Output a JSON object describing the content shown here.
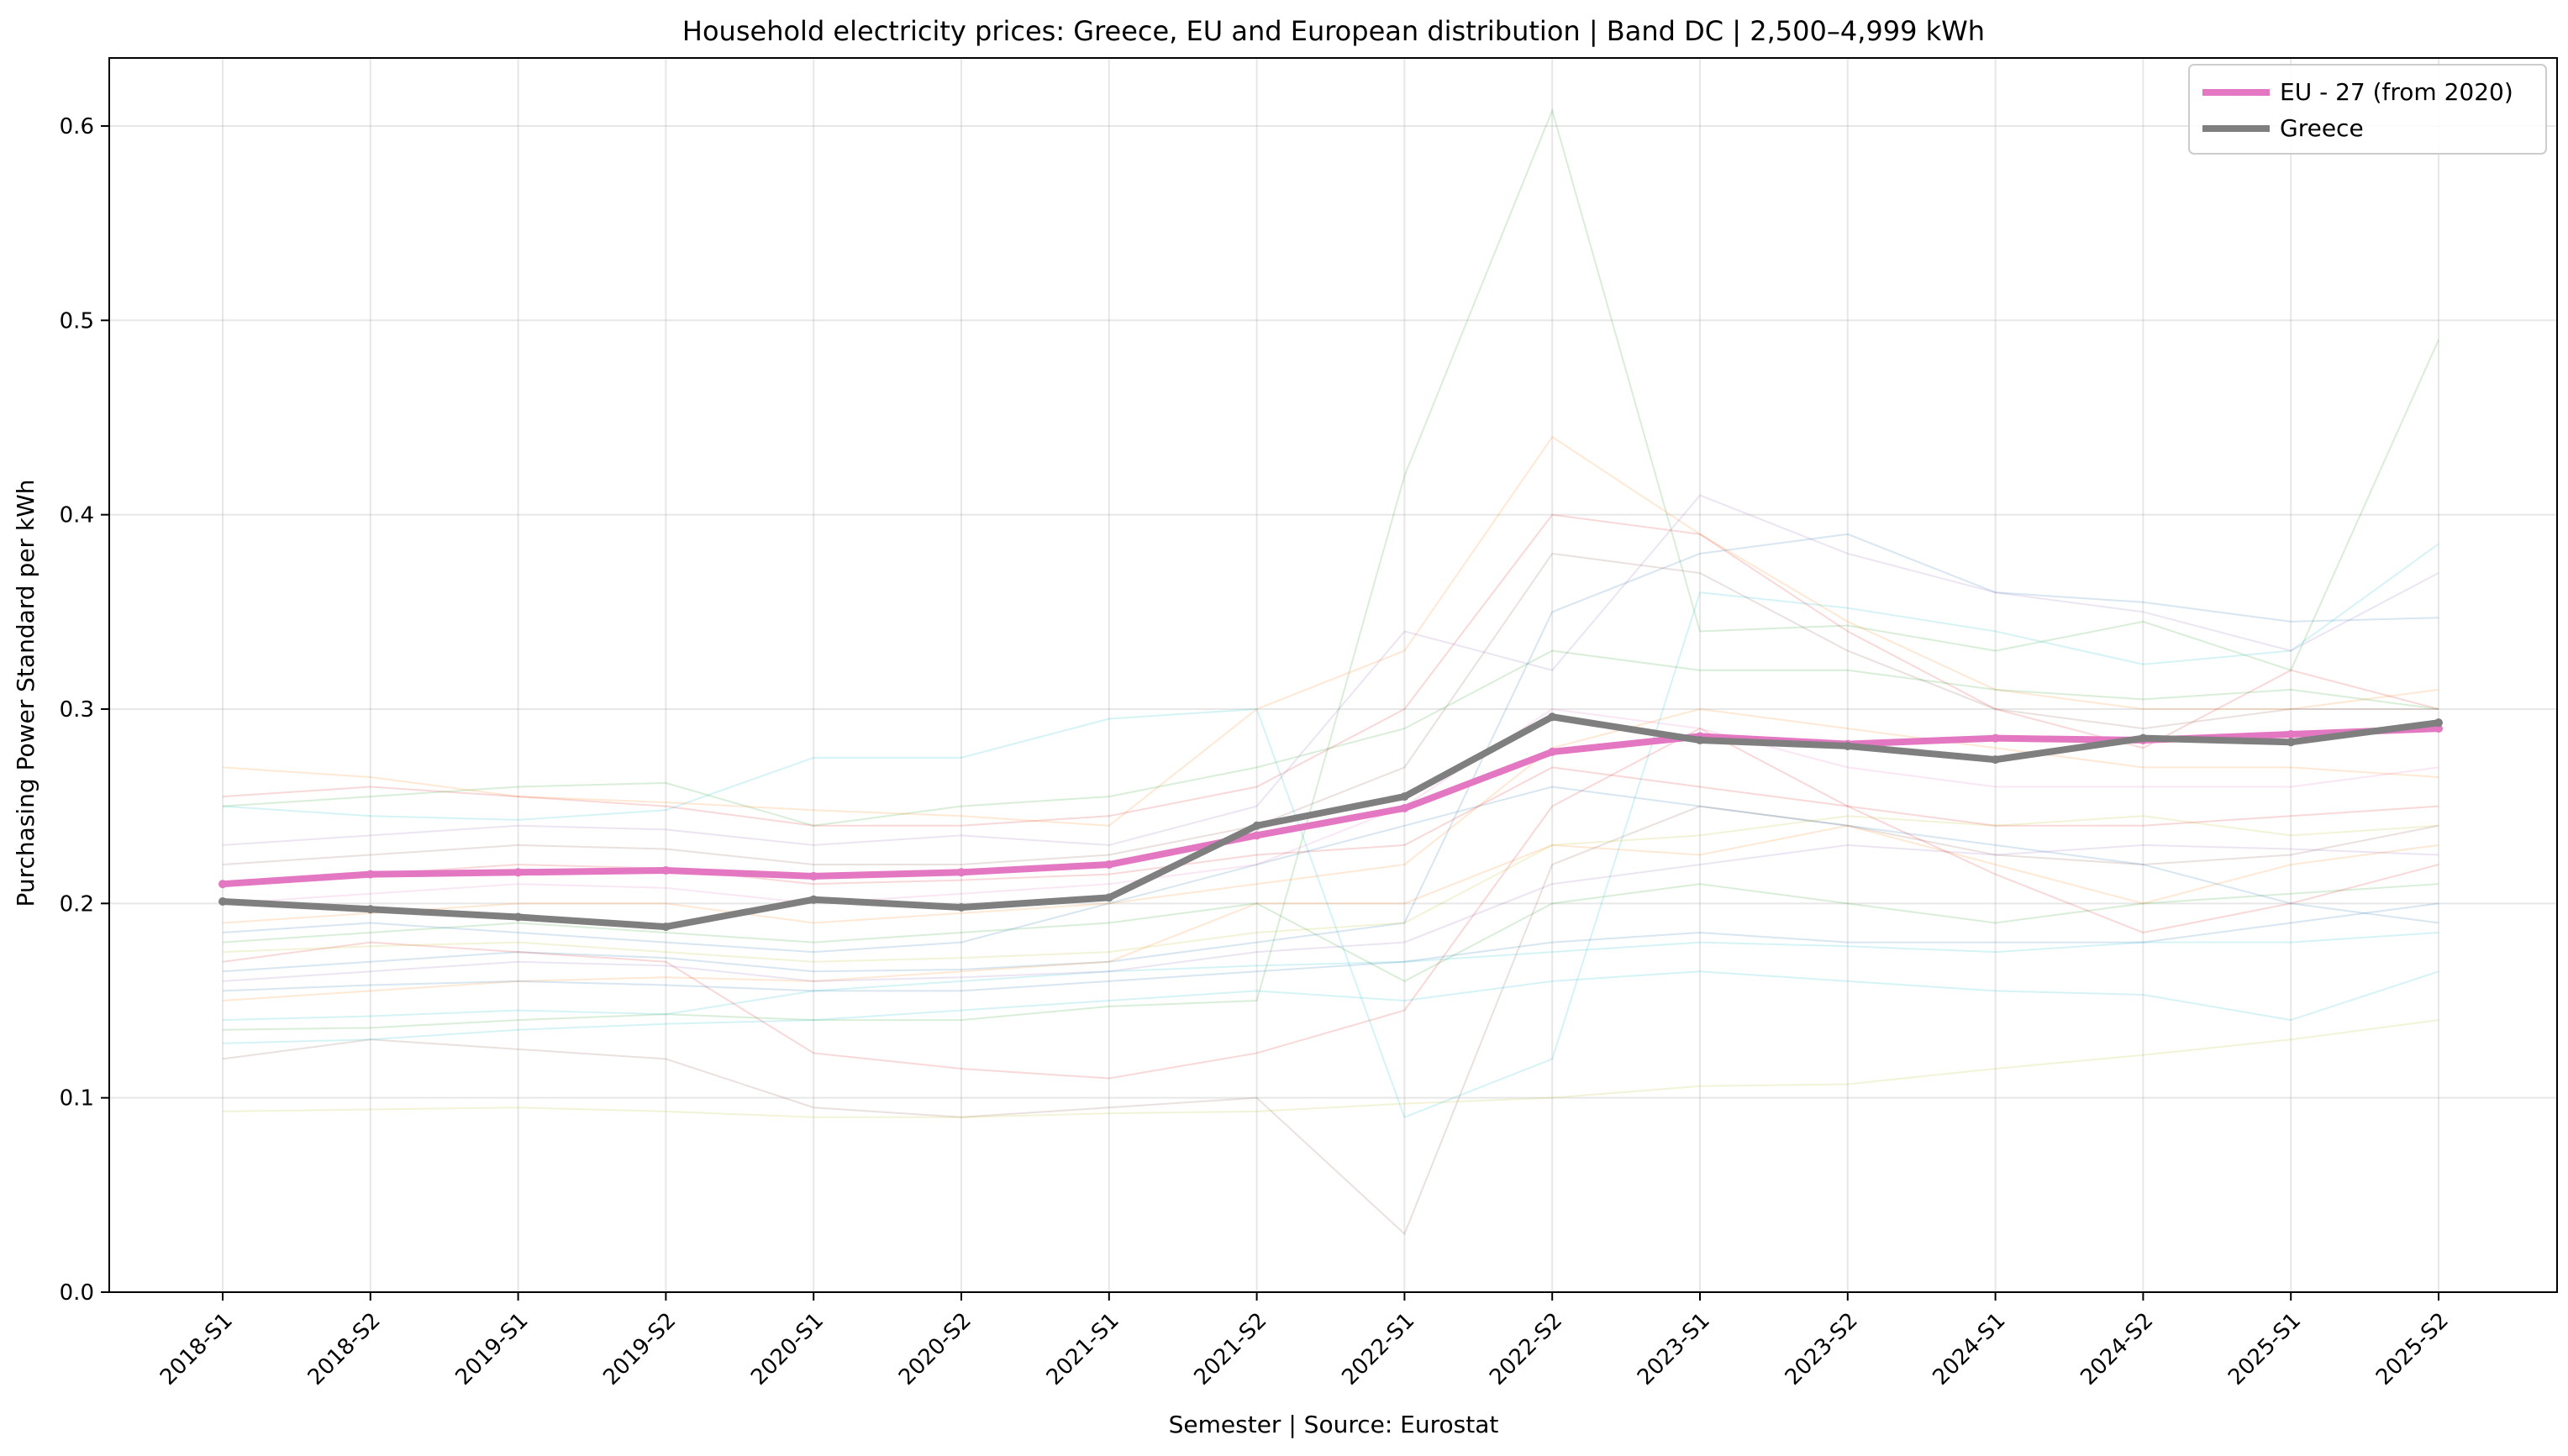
{
  "chart_data": {
    "type": "line",
    "title": "Household electricity prices: Greece, EU and European distribution | Band DC | 2,500–4,999 kWh",
    "xlabel": "Semester | Source: Eurostat",
    "ylabel": "Purchasing Power Standard per kWh",
    "categories": [
      "2018-S1",
      "2018-S2",
      "2019-S1",
      "2019-S2",
      "2020-S1",
      "2020-S2",
      "2021-S1",
      "2021-S2",
      "2022-S1",
      "2022-S2",
      "2023-S1",
      "2023-S2",
      "2024-S1",
      "2024-S2",
      "2025-S1",
      "2025-S2"
    ],
    "ylim": [
      0,
      0.635
    ],
    "yticks": [
      "0.0",
      "0.1",
      "0.2",
      "0.3",
      "0.4",
      "0.5",
      "0.6"
    ],
    "grid": true,
    "legend_position": "top-right",
    "series": [
      {
        "name": "EU - 27 (from 2020)",
        "color": "#e377c2",
        "values": [
          0.21,
          0.215,
          0.216,
          0.217,
          0.214,
          0.216,
          0.22,
          0.235,
          0.249,
          0.278,
          0.286,
          0.282,
          0.285,
          0.284,
          0.287,
          0.29
        ]
      },
      {
        "name": "Greece",
        "color": "#7f7f7f",
        "values": [
          0.201,
          0.197,
          0.193,
          0.188,
          0.202,
          0.198,
          0.203,
          0.24,
          0.255,
          0.296,
          0.284,
          0.281,
          0.274,
          0.285,
          0.283,
          0.293
        ]
      }
    ],
    "background_series": [
      {
        "color": "#2ca02c",
        "values": [
          0.135,
          0.136,
          0.14,
          0.143,
          0.14,
          0.14,
          0.147,
          0.15,
          0.42,
          0.608,
          0.34,
          0.343,
          0.33,
          0.345,
          0.32,
          0.49
        ]
      },
      {
        "color": "#17becf",
        "values": [
          0.25,
          0.245,
          0.243,
          0.248,
          0.275,
          0.275,
          0.295,
          0.3,
          0.09,
          0.12,
          0.36,
          0.352,
          0.34,
          0.323,
          0.33,
          0.385
        ]
      },
      {
        "color": "#ff7f0e",
        "values": [
          0.27,
          0.265,
          0.255,
          0.252,
          0.248,
          0.245,
          0.24,
          0.3,
          0.33,
          0.44,
          0.39,
          0.345,
          0.31,
          0.3,
          0.3,
          0.31
        ]
      },
      {
        "color": "#d62728",
        "values": [
          0.255,
          0.26,
          0.255,
          0.25,
          0.24,
          0.24,
          0.245,
          0.26,
          0.3,
          0.4,
          0.39,
          0.34,
          0.3,
          0.28,
          0.32,
          0.3
        ]
      },
      {
        "color": "#1f77b4",
        "values": [
          0.165,
          0.17,
          0.175,
          0.172,
          0.165,
          0.166,
          0.17,
          0.18,
          0.19,
          0.35,
          0.38,
          0.39,
          0.36,
          0.355,
          0.345,
          0.347
        ]
      },
      {
        "color": "#9467bd",
        "values": [
          0.23,
          0.235,
          0.24,
          0.238,
          0.23,
          0.235,
          0.23,
          0.25,
          0.34,
          0.32,
          0.41,
          0.38,
          0.36,
          0.35,
          0.33,
          0.37
        ]
      },
      {
        "color": "#8c564b",
        "values": [
          0.12,
          0.13,
          0.125,
          0.12,
          0.095,
          0.09,
          0.095,
          0.1,
          0.03,
          0.22,
          0.25,
          0.24,
          0.225,
          0.22,
          0.225,
          0.24
        ]
      },
      {
        "color": "#bcbd22",
        "values": [
          0.093,
          0.094,
          0.095,
          0.093,
          0.09,
          0.09,
          0.092,
          0.093,
          0.097,
          0.1,
          0.106,
          0.107,
          0.115,
          0.122,
          0.13,
          0.14
        ]
      },
      {
        "color": "#17becf",
        "values": [
          0.14,
          0.142,
          0.145,
          0.143,
          0.155,
          0.16,
          0.165,
          0.168,
          0.17,
          0.175,
          0.18,
          0.178,
          0.175,
          0.18,
          0.18,
          0.185
        ]
      },
      {
        "color": "#ff7f0e",
        "values": [
          0.15,
          0.155,
          0.16,
          0.162,
          0.16,
          0.165,
          0.17,
          0.2,
          0.2,
          0.23,
          0.225,
          0.24,
          0.22,
          0.2,
          0.22,
          0.23
        ]
      },
      {
        "color": "#2ca02c",
        "values": [
          0.18,
          0.185,
          0.19,
          0.185,
          0.18,
          0.185,
          0.19,
          0.2,
          0.16,
          0.2,
          0.21,
          0.2,
          0.19,
          0.2,
          0.205,
          0.21
        ]
      },
      {
        "color": "#d62728",
        "values": [
          0.17,
          0.18,
          0.175,
          0.17,
          0.123,
          0.115,
          0.11,
          0.123,
          0.145,
          0.25,
          0.29,
          0.25,
          0.215,
          0.185,
          0.2,
          0.22
        ]
      },
      {
        "color": "#1f77b4",
        "values": [
          0.185,
          0.19,
          0.185,
          0.18,
          0.175,
          0.18,
          0.2,
          0.22,
          0.24,
          0.26,
          0.25,
          0.24,
          0.23,
          0.22,
          0.2,
          0.19
        ]
      },
      {
        "color": "#9467bd",
        "values": [
          0.16,
          0.165,
          0.17,
          0.168,
          0.16,
          0.162,
          0.165,
          0.175,
          0.18,
          0.21,
          0.22,
          0.23,
          0.225,
          0.23,
          0.228,
          0.225
        ]
      },
      {
        "color": "#8c564b",
        "values": [
          0.22,
          0.225,
          0.23,
          0.228,
          0.22,
          0.22,
          0.225,
          0.24,
          0.27,
          0.38,
          0.37,
          0.33,
          0.3,
          0.29,
          0.3,
          0.3
        ]
      },
      {
        "color": "#e377c2",
        "values": [
          0.2,
          0.205,
          0.21,
          0.208,
          0.2,
          0.205,
          0.21,
          0.22,
          0.25,
          0.3,
          0.29,
          0.27,
          0.26,
          0.26,
          0.26,
          0.27
        ]
      },
      {
        "color": "#bcbd22",
        "values": [
          0.175,
          0.178,
          0.18,
          0.175,
          0.17,
          0.172,
          0.175,
          0.185,
          0.19,
          0.23,
          0.235,
          0.245,
          0.24,
          0.245,
          0.235,
          0.24
        ]
      },
      {
        "color": "#17becf",
        "values": [
          0.128,
          0.13,
          0.135,
          0.138,
          0.14,
          0.145,
          0.15,
          0.155,
          0.15,
          0.16,
          0.165,
          0.16,
          0.155,
          0.153,
          0.14,
          0.165
        ]
      },
      {
        "color": "#2ca02c",
        "values": [
          0.25,
          0.255,
          0.26,
          0.262,
          0.24,
          0.25,
          0.255,
          0.27,
          0.29,
          0.33,
          0.32,
          0.32,
          0.31,
          0.305,
          0.31,
          0.3
        ]
      },
      {
        "color": "#ff7f0e",
        "values": [
          0.19,
          0.195,
          0.2,
          0.2,
          0.19,
          0.195,
          0.2,
          0.21,
          0.22,
          0.28,
          0.3,
          0.29,
          0.28,
          0.27,
          0.27,
          0.265
        ]
      },
      {
        "color": "#1f77b4",
        "values": [
          0.155,
          0.158,
          0.16,
          0.158,
          0.155,
          0.155,
          0.16,
          0.165,
          0.17,
          0.18,
          0.185,
          0.18,
          0.18,
          0.18,
          0.19,
          0.2
        ]
      },
      {
        "color": "#d62728",
        "values": [
          0.21,
          0.215,
          0.22,
          0.218,
          0.21,
          0.212,
          0.215,
          0.225,
          0.23,
          0.27,
          0.26,
          0.25,
          0.24,
          0.24,
          0.245,
          0.25
        ]
      }
    ]
  }
}
